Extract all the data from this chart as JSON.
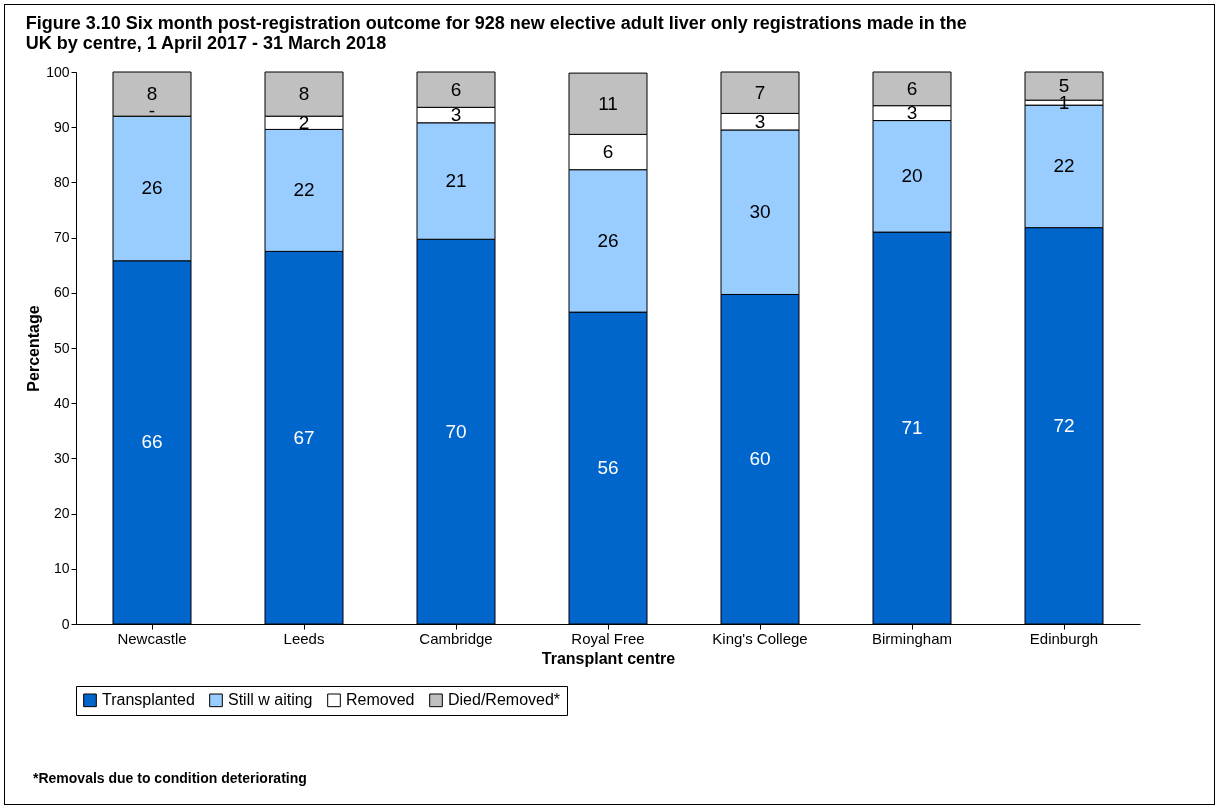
{
  "chart_data": {
    "type": "bar",
    "stacked": true,
    "title": "Figure 3.10 Six month post-registration outcome for 928 new elective adult liver only registrations made in the UK by centre, 1 April 2017 - 31 March 2018",
    "xlabel": "Transplant centre",
    "ylabel": "Percentage",
    "categories": [
      "Newcastle",
      "Leeds",
      "Cambridge",
      "Royal Free",
      "King's College",
      "Birmingham",
      "Edinburgh"
    ],
    "series": [
      {
        "name": "Transplanted",
        "color": "#0066cc",
        "values": [
          65.8,
          67.5,
          69.7,
          56.5,
          59.7,
          71.0,
          71.8
        ],
        "value_labels": [
          "66",
          "67",
          "70",
          "56",
          "60",
          "71",
          "72"
        ]
      },
      {
        "name": "Still w aiting",
        "color": "#99ccff",
        "values": [
          26.2,
          22.1,
          21.1,
          25.8,
          29.8,
          20.2,
          22.2
        ],
        "value_labels": [
          "26",
          "22",
          "21",
          "26",
          "30",
          "20",
          "22"
        ]
      },
      {
        "name": "Removed",
        "color": "#ffffff",
        "values": [
          0,
          2.4,
          2.8,
          6.4,
          3.0,
          2.7,
          0.9
        ],
        "value_labels": [
          "-",
          "2",
          "3",
          "6",
          "3",
          "3",
          "1"
        ]
      },
      {
        "name": "Died/Removed*",
        "color": "#c0c0c0",
        "values": [
          8.0,
          8.0,
          6.4,
          11.1,
          7.5,
          6.1,
          5.1
        ],
        "value_labels": [
          "8",
          "8",
          "6",
          "11",
          "7",
          "6",
          "5"
        ]
      }
    ],
    "ylim": [
      0,
      100
    ],
    "yticks": [
      0,
      10,
      20,
      30,
      40,
      50,
      60,
      70,
      80,
      90,
      100
    ],
    "grid": false,
    "legend": "bottom",
    "annotations": [
      "*Removals due to condition deteriorating"
    ]
  }
}
